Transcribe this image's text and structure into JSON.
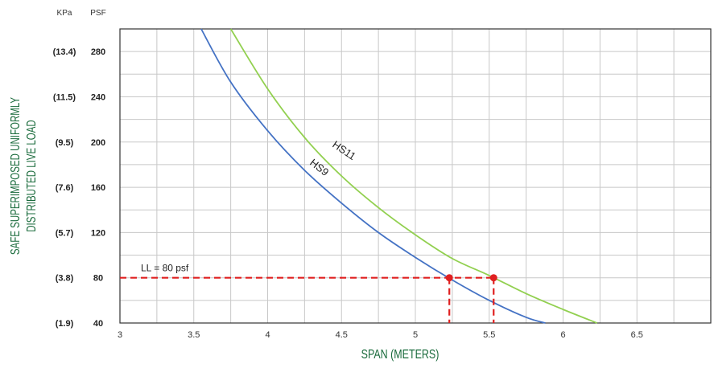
{
  "chart_data": {
    "type": "line",
    "x_axis": {
      "label": "SPAN (METERS)",
      "range": [
        3,
        7
      ],
      "ticks": [
        "3",
        "3.5",
        "4",
        "4.5",
        "5",
        "5.5",
        "6",
        "6.5"
      ]
    },
    "y_axis": {
      "label_line1": "SAFE SUPERIMPOSED UNIFORMLY",
      "label_line2": "DISTRIBUTED LIVE LOAD",
      "range": [
        40,
        300
      ],
      "psf_header": "PSF",
      "kpa_header": "KPa",
      "psf_ticks": [
        "280",
        "240",
        "200",
        "160",
        "120",
        "80",
        "40"
      ],
      "kpa_ticks": [
        "(13.4)",
        "(11.5)",
        "(9.5)",
        "(7.6)",
        "(5.7)",
        "(3.8)",
        "(1.9)"
      ]
    },
    "grid": true,
    "series": [
      {
        "name": "HS9",
        "color": "#4472c4",
        "x": [
          3.55,
          3.75,
          4.0,
          4.25,
          4.5,
          4.75,
          5.0,
          5.25,
          5.5,
          5.75,
          5.88
        ],
        "y": [
          300,
          253,
          210,
          175,
          146,
          120,
          98,
          78,
          60,
          45,
          40
        ]
      },
      {
        "name": "HS11",
        "color": "#92d050",
        "x": [
          3.75,
          4.0,
          4.25,
          4.5,
          4.75,
          5.0,
          5.25,
          5.5,
          5.75,
          6.0,
          6.23
        ],
        "y": [
          300,
          247,
          204,
          170,
          142,
          118,
          97,
          82,
          66,
          52,
          40
        ]
      }
    ],
    "annotations": [
      {
        "text": "LL = 80 psf",
        "color": "#e02020",
        "y": 80,
        "points_x": [
          5.23,
          5.53
        ]
      }
    ]
  }
}
